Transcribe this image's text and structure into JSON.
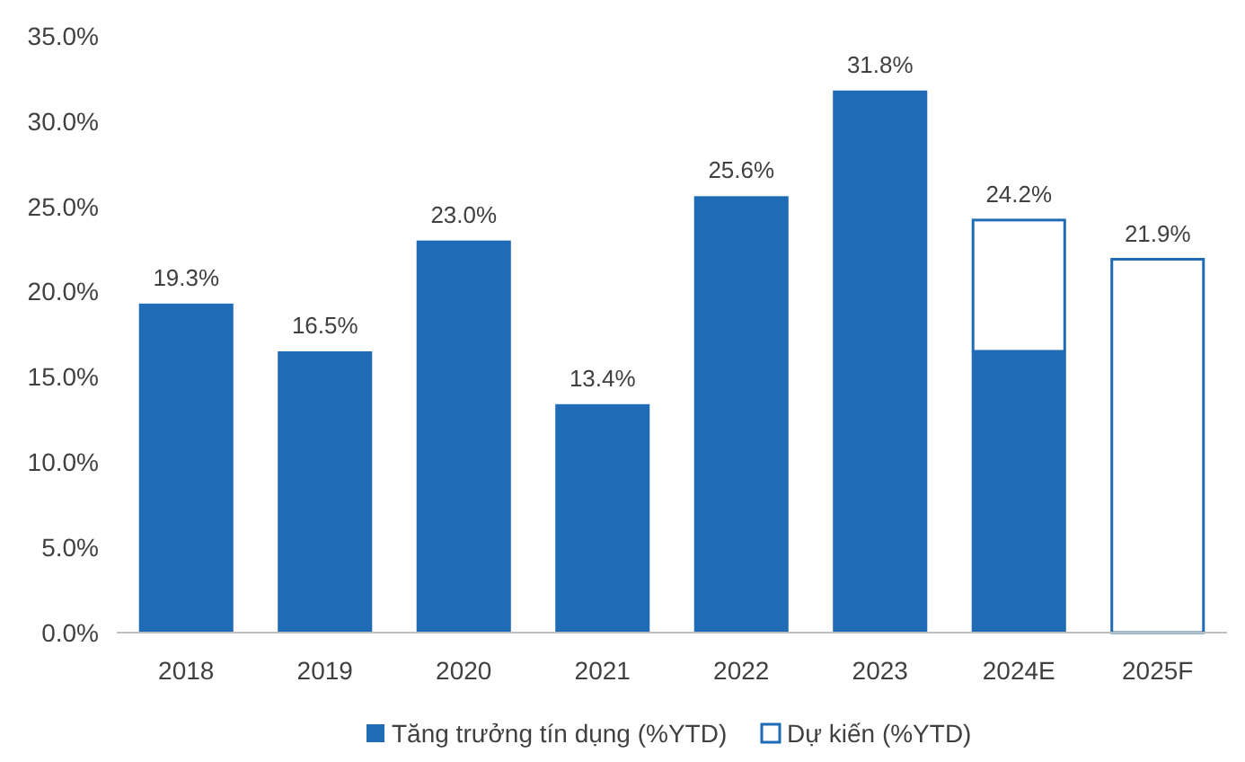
{
  "chart_data": {
    "type": "bar",
    "stacked": true,
    "categories": [
      "2018",
      "2019",
      "2020",
      "2021",
      "2022",
      "2023",
      "2024E",
      "2025F"
    ],
    "series": [
      {
        "name": "Tăng trưởng tín dụng (%YTD)",
        "color": "#1f6bb5",
        "values": [
          19.3,
          16.5,
          23.0,
          13.4,
          25.6,
          31.8,
          16.5,
          null
        ]
      },
      {
        "name": "Dự kiến (%YTD)",
        "color": "#1f6bb5",
        "values": [
          null,
          null,
          null,
          null,
          null,
          null,
          7.7,
          21.9
        ]
      }
    ],
    "totals": [
      "19.3%",
      "16.5%",
      "23.0%",
      "13.4%",
      "25.6%",
      "31.8%",
      "24.2%",
      "21.9%"
    ],
    "ylim": [
      0,
      35
    ],
    "yticks": [
      {
        "value": 0,
        "label": "0.0%"
      },
      {
        "value": 5,
        "label": "5.0%"
      },
      {
        "value": 10,
        "label": "10.0%"
      },
      {
        "value": 15,
        "label": "15.0%"
      },
      {
        "value": 20,
        "label": "20.0%"
      },
      {
        "value": 25,
        "label": "25.0%"
      },
      {
        "value": 30,
        "label": "30.0%"
      },
      {
        "value": 35,
        "label": "35.0%"
      }
    ],
    "grid": false,
    "legend": "bottom"
  }
}
